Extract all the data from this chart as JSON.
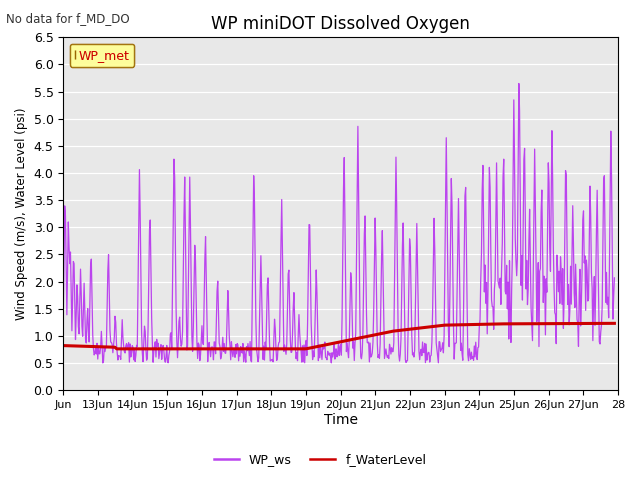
{
  "title": "WP miniDOT Dissolved Oxygen",
  "no_data_text": "No data for f_MD_DO",
  "xlabel": "Time",
  "ylabel": "Wind Speed (m/s), Water Level (psi)",
  "ylim": [
    0.0,
    6.5
  ],
  "yticks": [
    0.0,
    0.5,
    1.0,
    1.5,
    2.0,
    2.5,
    3.0,
    3.5,
    4.0,
    4.5,
    5.0,
    5.5,
    6.0,
    6.5
  ],
  "bg_color": "#e8e8e8",
  "legend_box_label": "WP_met",
  "legend_box_facecolor": "#ffff99",
  "legend_box_edgecolor": "#996600",
  "line_wp_ws_color": "#bb44ee",
  "line_water_level_color": "#cc0000",
  "x_start_days": 12,
  "x_end_days": 28,
  "xtick_labels": [
    "Jun",
    "13Jun",
    "14Jun",
    "15Jun",
    "16Jun",
    "17Jun",
    "18Jun",
    "19Jun",
    "20Jun",
    "21Jun",
    "22Jun",
    "23Jun",
    "24Jun",
    "25Jun",
    "26Jun",
    "27Jun",
    "28"
  ],
  "xtick_positions": [
    12,
    13,
    14,
    15,
    16,
    17,
    18,
    19,
    20,
    21,
    22,
    23,
    24,
    25,
    26,
    27,
    28
  ],
  "figsize": [
    6.4,
    4.8
  ],
  "dpi": 100
}
